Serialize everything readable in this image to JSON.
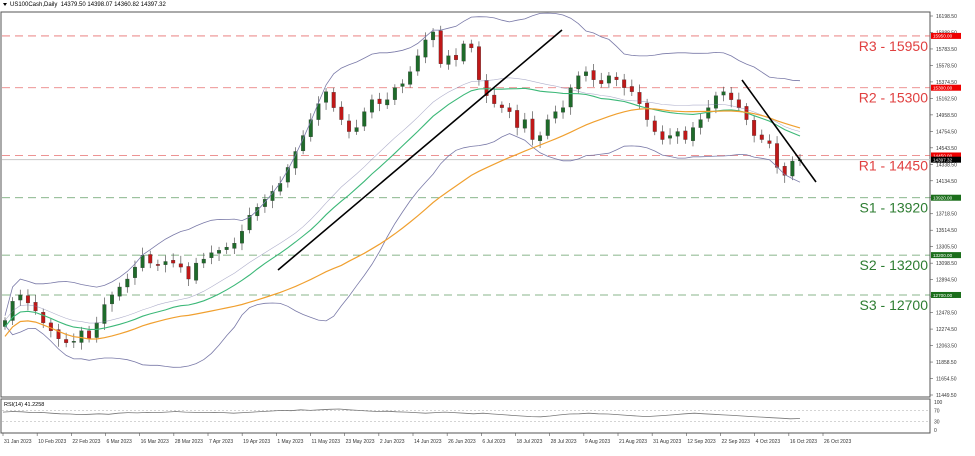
{
  "header": {
    "symbol": "US100Cash,Daily",
    "ohlc": "14379.50 14398.07 14360.82 14397.32"
  },
  "rsi_panel": {
    "label": "RSI(14) 41.2258",
    "levels": [
      "100",
      "70",
      "30",
      "0"
    ]
  },
  "colors": {
    "resistance": "#e04040",
    "support": "#2e7d32",
    "bull_candle": "#1e6b2a",
    "bear_candle": "#c01818",
    "ma_fast": "#3cb878",
    "ma_slow": "#f0a030",
    "bollinger": "#7a7aa8",
    "trendline": "#000000",
    "price_tag": "#000000"
  },
  "chart_data": {
    "type": "candlestick",
    "title": "US100Cash,Daily",
    "instrument": "US100Cash",
    "timeframe": "Daily",
    "last_ohlc": {
      "open": 14379.5,
      "high": 14398.07,
      "low": 14360.82,
      "close": 14397.32
    },
    "current_price_label": "14397.32",
    "y_axis_ticks": [
      "16198.50",
      "15988.50",
      "15783.50",
      "15578.50",
      "15374.50",
      "15162.50",
      "14958.50",
      "14754.50",
      "14543.50",
      "14338.50",
      "14134.50",
      "13929.50",
      "13718.50",
      "13514.50",
      "13305.50",
      "13098.50",
      "12894.50",
      "12688.50",
      "12478.50",
      "12274.50",
      "12063.50",
      "11858.50",
      "11654.50",
      "11449.50"
    ],
    "x_axis_ticks": [
      "31 Jan 2023",
      "10 Feb 2023",
      "22 Feb 2023",
      "6 Mar 2023",
      "16 Mar 2023",
      "28 Mar 2023",
      "7 Apr 2023",
      "19 Apr 2023",
      "1 May 2023",
      "11 May 2023",
      "23 May 2023",
      "2 Jun 2023",
      "14 Jun 2023",
      "26 Jun 2023",
      "6 Jul 2023",
      "18 Jul 2023",
      "28 Jul 2023",
      "9 Aug 2023",
      "21 Aug 2023",
      "31 Aug 2023",
      "12 Sep 2023",
      "22 Sep 2023",
      "4 Oct 2023",
      "16 Oct 2023",
      "26 Oct 2023"
    ],
    "horizontal_levels": [
      {
        "name": "R3",
        "label": "R3 - 15950",
        "value": 15950,
        "tag": "15950.00",
        "kind": "resistance"
      },
      {
        "name": "R2",
        "label": "R2 - 15300",
        "value": 15300,
        "tag": "15300.00",
        "kind": "resistance"
      },
      {
        "name": "R1",
        "label": "R1 - 14450",
        "value": 14450,
        "tag": "14450.00",
        "kind": "resistance"
      },
      {
        "name": "S1",
        "label": "S1 - 13920",
        "value": 13920,
        "tag": "13920.00",
        "kind": "support"
      },
      {
        "name": "S2",
        "label": "S2 - 13200",
        "value": 13200,
        "tag": "13200.00",
        "kind": "support"
      },
      {
        "name": "S3",
        "label": "S3 - 12700",
        "value": 12700,
        "tag": "12700.00",
        "kind": "support"
      }
    ],
    "trendlines": [
      {
        "name": "uptrend",
        "from": [
          "1 May 2023",
          13050
        ],
        "to": [
          "24 Jul 2023",
          16000
        ]
      },
      {
        "name": "downtrend",
        "from": [
          "10 Oct 2023",
          15300
        ],
        "to": [
          "1 Nov 2023",
          14130
        ]
      }
    ],
    "indicators": [
      "Bollinger Bands (20)",
      "Moving Average 50 (green)",
      "Moving Average 100 (orange)",
      "RSI(14)"
    ],
    "close_path": [
      12380,
      12620,
      12700,
      12600,
      12500,
      12350,
      12250,
      12150,
      12100,
      12120,
      12250,
      12150,
      12350,
      12580,
      12700,
      12800,
      12900,
      13050,
      13200,
      13100,
      13080,
      13120,
      13100,
      13050,
      12900,
      13100,
      13150,
      13230,
      13260,
      13300,
      13350,
      13500,
      13700,
      13800,
      13900,
      14000,
      14100,
      14300,
      14500,
      14700,
      14900,
      15100,
      15250,
      15050,
      14900,
      14750,
      14800,
      15000,
      15150,
      15100,
      15150,
      15300,
      15350,
      15500,
      15700,
      15900,
      16000,
      15600,
      15700,
      15650,
      15850,
      15800,
      15400,
      15200,
      15100,
      15050,
      15000,
      14800,
      14900,
      14650,
      14700,
      14900,
      15000,
      15050,
      15300,
      15450,
      15500,
      15400,
      15350,
      15450,
      15400,
      15300,
      15250,
      15100,
      14900,
      14750,
      14650,
      14700,
      14750,
      14650,
      14800,
      14900,
      15050,
      15200,
      15250,
      15150,
      15050,
      14900,
      14700,
      14650,
      14600,
      14300,
      14200,
      14380,
      14397
    ],
    "rsi_path": [
      64,
      66,
      65,
      62,
      63,
      60,
      58,
      57,
      55,
      56,
      58,
      56,
      60,
      62,
      61,
      63,
      62,
      64,
      66,
      64,
      63,
      62,
      63,
      62,
      60,
      62,
      64,
      66,
      68,
      70,
      69,
      72,
      70,
      72,
      74,
      75,
      72,
      70,
      68,
      66,
      67,
      65,
      64,
      62,
      60,
      62,
      64,
      62,
      60,
      58,
      60,
      57,
      55,
      52,
      50,
      48,
      47,
      50,
      54,
      57,
      58,
      60,
      58,
      57,
      55,
      52,
      50,
      48,
      50,
      52,
      55,
      58,
      60,
      58,
      56,
      54,
      52,
      50,
      48,
      46,
      44,
      42,
      40,
      41
    ]
  }
}
